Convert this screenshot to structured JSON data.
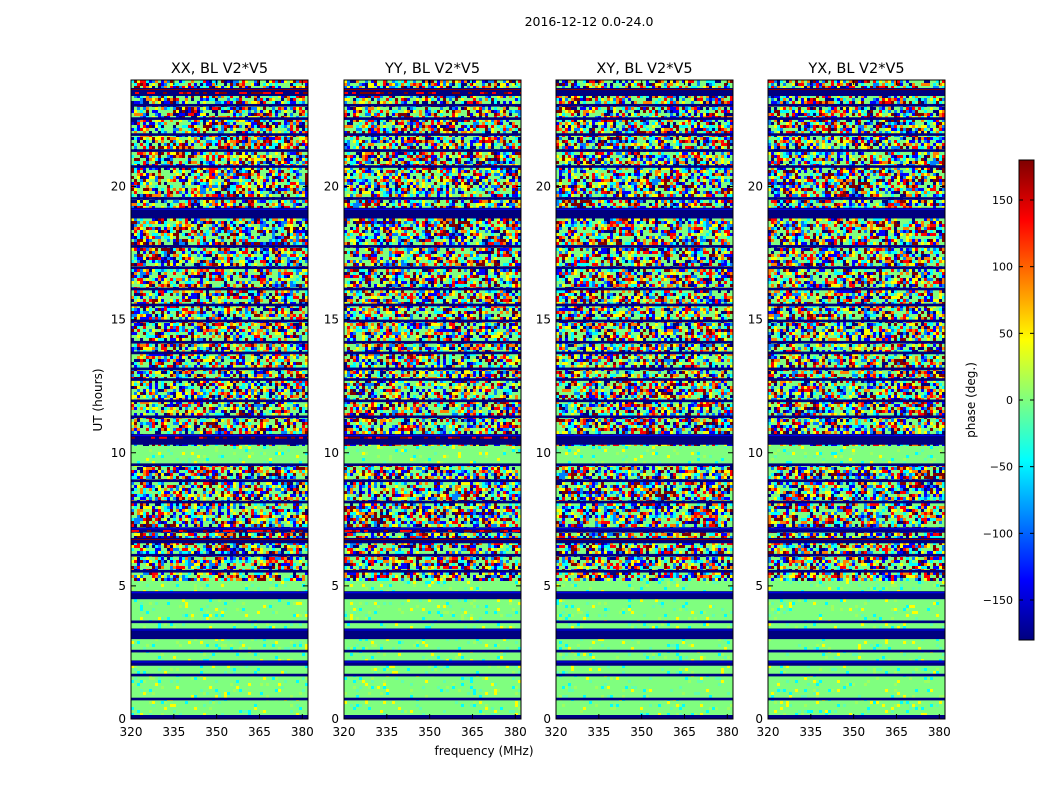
{
  "figure_title": "2016-12-12 0.0-24.0",
  "chart_data": {
    "type": "heatmap",
    "suptitle": "2016-12-12 0.0-24.0",
    "xlabel": "frequency (MHz)",
    "ylabel": "UT (hours)",
    "xlim": [
      320,
      382
    ],
    "ylim": [
      0,
      24
    ],
    "xticks": [
      320,
      335,
      350,
      365,
      380
    ],
    "yticks": [
      0,
      5,
      10,
      15,
      20
    ],
    "panels": [
      {
        "title": "XX, BL V2*V5"
      },
      {
        "title": "YY, BL V2*V5"
      },
      {
        "title": "XY, BL V2*V5"
      },
      {
        "title": "YX, BL V2*V5"
      }
    ],
    "colorbar": {
      "label": "phase (deg.)",
      "vmin": -180,
      "vmax": 180,
      "ticks": [
        -150,
        -100,
        -50,
        0,
        50,
        100,
        150
      ],
      "tick_labels": [
        "−150",
        "−100",
        "−50",
        "0",
        "50",
        "100",
        "150"
      ],
      "colormap": "jet",
      "colors": [
        "#00007f",
        "#0000ff",
        "#007fff",
        "#00ffff",
        "#7fff7f",
        "#ffff00",
        "#ff7f00",
        "#ff0000",
        "#7f0000"
      ]
    },
    "flagged_bands_hours": [
      [
        0.0,
        0.15
      ],
      [
        0.7,
        0.8
      ],
      [
        1.6,
        1.7
      ],
      [
        2.0,
        2.2
      ],
      [
        2.5,
        2.6
      ],
      [
        3.0,
        3.4
      ],
      [
        3.6,
        3.7
      ],
      [
        4.5,
        4.8
      ],
      [
        5.5,
        5.6
      ],
      [
        6.1,
        6.2
      ],
      [
        6.6,
        6.8
      ],
      [
        7.0,
        7.2
      ],
      [
        8.1,
        8.2
      ],
      [
        8.9,
        9.0
      ],
      [
        9.5,
        9.6
      ],
      [
        10.3,
        10.7
      ],
      [
        11.3,
        11.4
      ],
      [
        11.9,
        12.0
      ],
      [
        12.7,
        12.8
      ],
      [
        13.1,
        13.2
      ],
      [
        13.7,
        13.8
      ],
      [
        14.1,
        14.2
      ],
      [
        14.9,
        15.0
      ],
      [
        15.5,
        15.6
      ],
      [
        16.1,
        16.2
      ],
      [
        16.9,
        17.0
      ],
      [
        17.7,
        17.8
      ],
      [
        18.8,
        19.2
      ],
      [
        19.5,
        19.6
      ],
      [
        20.7,
        20.8
      ],
      [
        21.3,
        21.4
      ],
      [
        21.9,
        22.0
      ],
      [
        22.5,
        22.6
      ],
      [
        23.0,
        23.1
      ],
      [
        23.4,
        23.7
      ]
    ],
    "smooth_ranges_hours": [
      [
        0.15,
        5.2
      ],
      [
        9.6,
        10.3
      ]
    ]
  }
}
